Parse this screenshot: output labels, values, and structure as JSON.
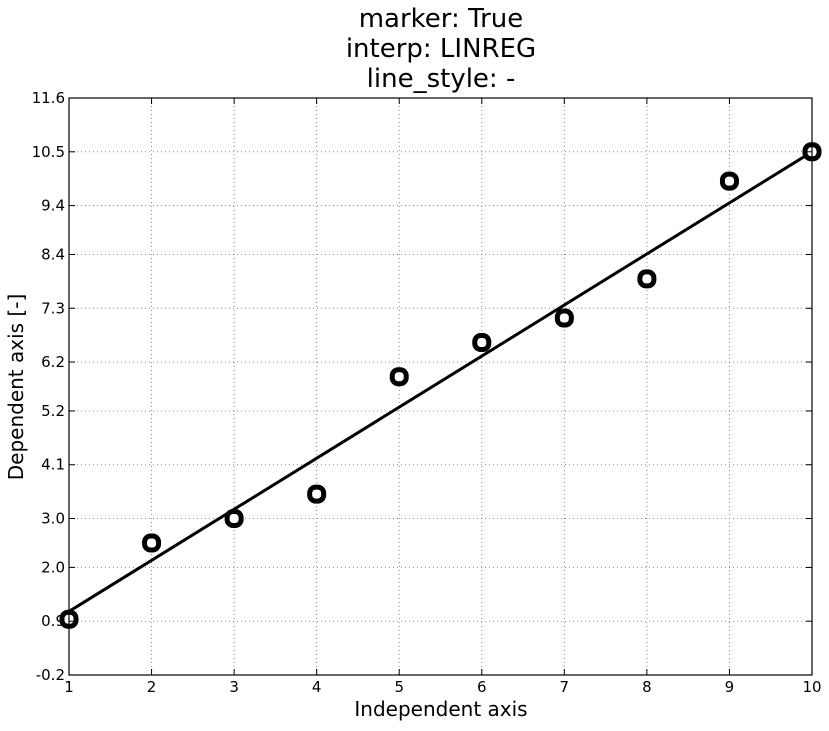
{
  "chart_data": {
    "type": "line",
    "title": [
      "marker: True",
      "interp: LINREG",
      "line_style: -"
    ],
    "xlabel": "Independent axis",
    "ylabel": "Dependent axis [-]",
    "xlim": [
      1,
      10
    ],
    "ylim": [
      -0.2,
      11.6
    ],
    "xticks": [
      "1",
      "2",
      "3",
      "4",
      "5",
      "6",
      "7",
      "8",
      "9",
      "10"
    ],
    "yticks": [
      "-0.2",
      "0.9",
      "2.0",
      "3.0",
      "4.1",
      "5.2",
      "6.2",
      "7.3",
      "8.4",
      "9.4",
      "10.5",
      "11.6"
    ],
    "grid": true,
    "series": [
      {
        "kind": "markers",
        "marker": "o",
        "x": [
          1,
          2,
          3,
          4,
          5,
          6,
          7,
          8,
          9,
          10
        ],
        "y": [
          0.94,
          2.5,
          3.0,
          3.5,
          5.9,
          6.6,
          7.1,
          7.9,
          9.9,
          10.5
        ]
      },
      {
        "kind": "regression-line",
        "line_style": "-",
        "x": [
          1,
          10
        ],
        "y": [
          1.1,
          10.5
        ]
      }
    ],
    "colors": {
      "line": "#000000",
      "marker_edge": "#000000",
      "marker_face": "#ffffff",
      "grid": "#888888"
    }
  }
}
